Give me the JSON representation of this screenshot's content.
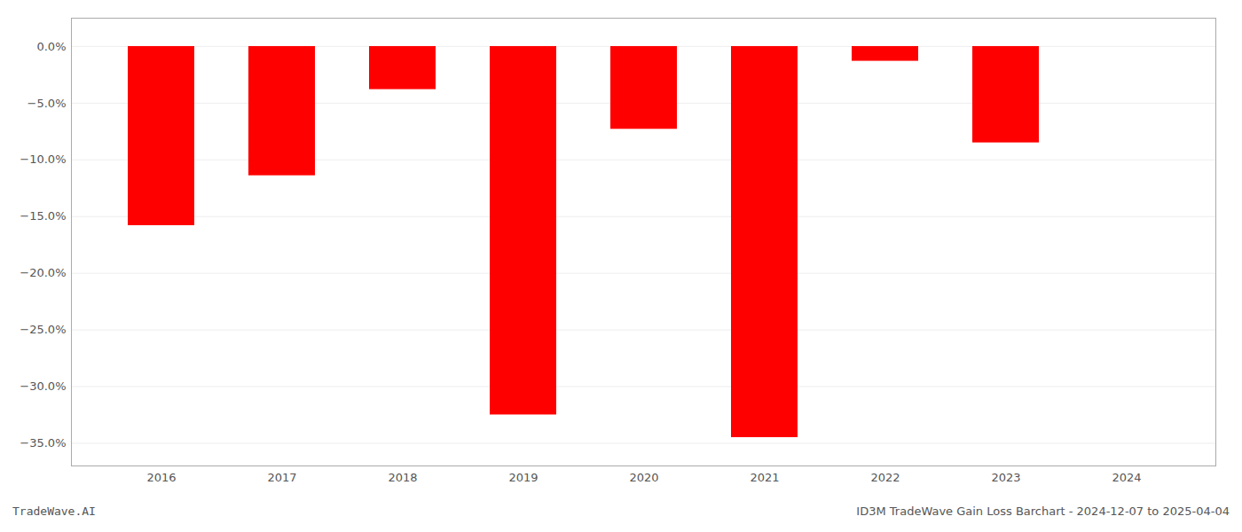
{
  "chart_data": {
    "type": "bar",
    "categories": [
      "2016",
      "2017",
      "2018",
      "2019",
      "2020",
      "2021",
      "2022",
      "2023",
      "2024"
    ],
    "values": [
      -0.158,
      -0.114,
      -0.038,
      -0.325,
      -0.073,
      -0.345,
      -0.013,
      -0.085,
      0.0
    ],
    "color": "#ff0000",
    "ylim": [
      -0.37,
      0.025
    ],
    "yticks": [
      {
        "value": 0.0,
        "label": "0.0%"
      },
      {
        "value": -0.05,
        "label": "−5.0%"
      },
      {
        "value": -0.1,
        "label": "−10.0%"
      },
      {
        "value": -0.15,
        "label": "−15.0%"
      },
      {
        "value": -0.2,
        "label": "−20.0%"
      },
      {
        "value": -0.25,
        "label": "−25.0%"
      },
      {
        "value": -0.3,
        "label": "−30.0%"
      },
      {
        "value": -0.35,
        "label": "−35.0%"
      }
    ],
    "grid": true,
    "annotations": [
      "TradeWave.AI",
      "ID3M TradeWave Gain Loss Barchart - 2024-12-07 to 2025-04-04"
    ]
  }
}
